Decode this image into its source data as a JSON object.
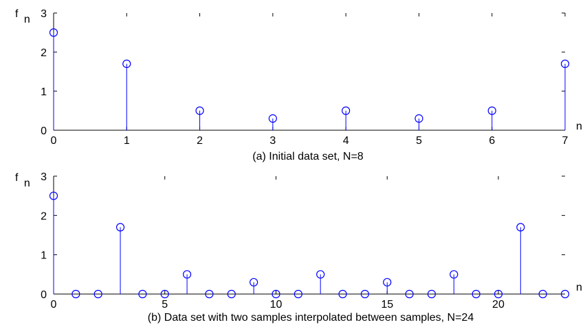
{
  "chart_data": [
    {
      "type": "stem",
      "caption": "(a) Initial data set, N=8",
      "ylabel_main": "f",
      "ylabel_sub": "n",
      "xlabel": "n",
      "xlim": [
        0,
        7
      ],
      "ylim": [
        0,
        3
      ],
      "xticks": [
        0,
        1,
        2,
        3,
        4,
        5,
        6,
        7
      ],
      "yticks": [
        0,
        1,
        2,
        3
      ],
      "x": [
        0,
        1,
        2,
        3,
        4,
        5,
        6,
        7
      ],
      "values": [
        2.5,
        1.7,
        0.5,
        0.3,
        0.5,
        0.3,
        0.5,
        1.7
      ],
      "grid": false,
      "color": "#0000ff"
    },
    {
      "type": "stem",
      "caption": "(b)  Data set with two samples interpolated between samples, N=24",
      "ylabel_main": "f",
      "ylabel_sub": "n",
      "xlabel": "n",
      "xlim": [
        0,
        23
      ],
      "ylim": [
        0,
        3
      ],
      "xticks": [
        0,
        5,
        10,
        15,
        20
      ],
      "yticks": [
        0,
        1,
        2,
        3
      ],
      "x": [
        0,
        1,
        2,
        3,
        4,
        5,
        6,
        7,
        8,
        9,
        10,
        11,
        12,
        13,
        14,
        15,
        16,
        17,
        18,
        19,
        20,
        21,
        22,
        23
      ],
      "values": [
        2.5,
        0,
        0,
        1.7,
        0,
        0,
        0.5,
        0,
        0,
        0.3,
        0,
        0,
        0.5,
        0,
        0,
        0.3,
        0,
        0,
        0.5,
        0,
        0,
        1.7,
        0,
        0
      ],
      "grid": false,
      "color": "#0000ff"
    }
  ]
}
